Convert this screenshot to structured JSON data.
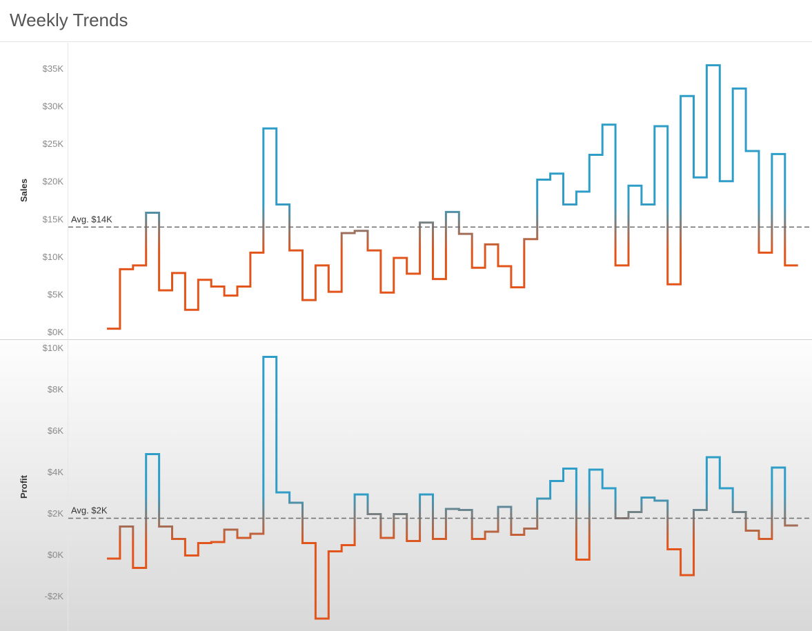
{
  "title": "Weekly Trends",
  "colors": {
    "above_average": "#2e9ec8",
    "below_average": "#e2541a",
    "average_line": "#6e6e6e",
    "tick_text": "#8a8a8a"
  },
  "chart_data": [
    {
      "type": "line",
      "step": true,
      "ylabel": "Sales",
      "ylim": [
        0,
        36000
      ],
      "yticks": [
        0,
        5000,
        10000,
        15000,
        20000,
        25000,
        30000,
        35000
      ],
      "ytick_labels": [
        "$0K",
        "$5K",
        "$10K",
        "$15K",
        "$20K",
        "$25K",
        "$30K",
        "$35K"
      ],
      "average": 13900,
      "average_label": "Avg. $14K",
      "gridlines": false,
      "color_rule": "above average = blue, below average = orange",
      "values": [
        400,
        8300,
        8800,
        15800,
        5500,
        7800,
        2900,
        6900,
        6000,
        4800,
        6000,
        10500,
        27000,
        16900,
        10800,
        4200,
        8800,
        5300,
        13100,
        13400,
        10800,
        5200,
        9800,
        7700,
        14500,
        7000,
        15900,
        13000,
        8500,
        11600,
        8700,
        5900,
        12300,
        20200,
        21000,
        16900,
        18600,
        23500,
        27500,
        8800,
        19400,
        16900,
        27300,
        6300,
        31300,
        20500,
        35400,
        20000,
        32300,
        24000,
        10500,
        23600,
        8800
      ]
    },
    {
      "type": "line",
      "step": true,
      "ylabel": "Profit",
      "ylim": [
        -3200,
        10000
      ],
      "yticks": [
        -2000,
        0,
        2000,
        4000,
        6000,
        8000,
        10000
      ],
      "ytick_labels": [
        "-$2K",
        "$0K",
        "$2K",
        "$4K",
        "$6K",
        "$8K",
        "$10K"
      ],
      "average": 1750,
      "average_label": "Avg. $2K",
      "gridlines": false,
      "color_rule": "above average = blue, below average = orange",
      "values": [
        -200,
        1350,
        -650,
        4850,
        1350,
        750,
        -50,
        550,
        600,
        1200,
        800,
        1000,
        9550,
        3000,
        2500,
        550,
        -3100,
        150,
        450,
        2900,
        1950,
        800,
        1950,
        650,
        2900,
        750,
        2200,
        2150,
        750,
        1100,
        2300,
        950,
        1250,
        2700,
        3550,
        4150,
        -250,
        4100,
        3200,
        1750,
        2050,
        2750,
        2600,
        250,
        -1000,
        2150,
        4700,
        3200,
        2050,
        1150,
        750,
        4200,
        1400
      ]
    }
  ]
}
